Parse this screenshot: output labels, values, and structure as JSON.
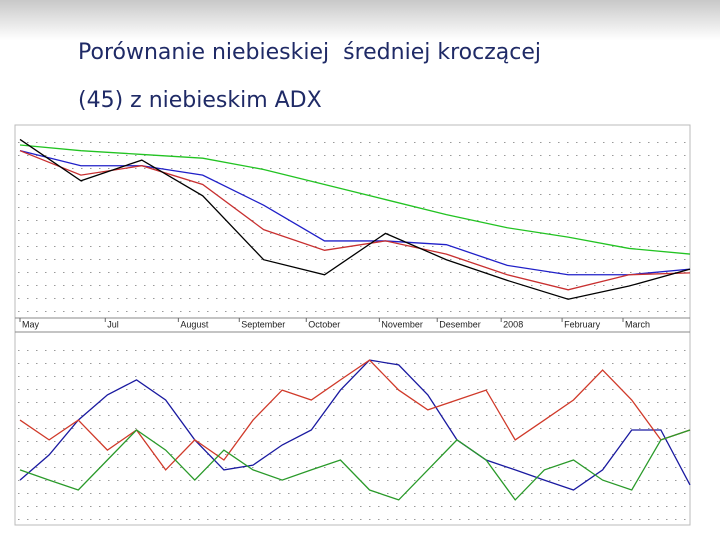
{
  "title": [
    "Porównanie niebieskiej  średniej kroczącej",
    "(45) z niebieskim ADX"
  ],
  "chart_data": [
    {
      "type": "line",
      "xlim": [
        0,
        11
      ],
      "ylim": [
        0,
        100
      ],
      "grid": true,
      "x": [
        0,
        1,
        2,
        3,
        4,
        5,
        6,
        7,
        8,
        9,
        10,
        11
      ],
      "xticks": [
        {
          "value": 0,
          "label": "May"
        },
        {
          "value": 1.4,
          "label": "Jul"
        },
        {
          "value": 2.6,
          "label": "August"
        },
        {
          "value": 3.6,
          "label": "September"
        },
        {
          "value": 4.7,
          "label": "October"
        },
        {
          "value": 5.9,
          "label": "November"
        },
        {
          "value": 6.85,
          "label": "Desember"
        },
        {
          "value": 7.9,
          "label": "2008"
        },
        {
          "value": 8.9,
          "label": "February"
        },
        {
          "value": 9.9,
          "label": "March"
        }
      ],
      "series": [
        {
          "color": "#22c322",
          "values": [
            92,
            89,
            87,
            85,
            79,
            71,
            63,
            55,
            48,
            43,
            37,
            34
          ]
        },
        {
          "color": "#2020c8",
          "values": [
            89,
            81,
            81,
            76,
            60,
            41,
            41,
            39,
            28,
            23,
            23,
            26
          ]
        },
        {
          "color": "#c83030",
          "values": [
            89,
            76,
            81,
            71,
            47,
            36,
            41,
            34,
            23,
            15,
            23,
            24
          ]
        },
        {
          "color": "#000000",
          "values": [
            95,
            73,
            84,
            65,
            31,
            23,
            45,
            31,
            20,
            10,
            17,
            26
          ]
        }
      ]
    },
    {
      "type": "line",
      "xlim": [
        0,
        23
      ],
      "ylim": [
        0,
        60
      ],
      "grid": true,
      "x": [
        0,
        1,
        2,
        3,
        4,
        5,
        6,
        7,
        8,
        9,
        10,
        11,
        12,
        13,
        14,
        15,
        16,
        17,
        18,
        19,
        20,
        21,
        22,
        23
      ],
      "series": [
        {
          "color": "#1a1aa0",
          "values": [
            13.3,
            21.7,
            33.3,
            41.7,
            46.7,
            40,
            26.7,
            16.7,
            18.3,
            25,
            30,
            43.3,
            53.3,
            51.7,
            41.7,
            26.7,
            20,
            16.7,
            13.3,
            10,
            16.7,
            30,
            30,
            11.7
          ]
        },
        {
          "color": "#d03a2a",
          "values": [
            33.3,
            26.7,
            33.3,
            23.3,
            30,
            16.7,
            26.7,
            20,
            33.3,
            43.3,
            40,
            46.7,
            53.3,
            43.3,
            36.7,
            40,
            43.3,
            26.7,
            33.3,
            40,
            50,
            40,
            26.7,
            30
          ]
        },
        {
          "color": "#2a9a2a",
          "values": [
            16.7,
            13.3,
            10,
            20,
            30,
            23.3,
            13.3,
            23.3,
            16.7,
            13.3,
            16.7,
            20,
            10,
            6.7,
            16.7,
            26.7,
            20,
            6.7,
            16.7,
            20,
            13.3,
            10,
            26.7,
            30
          ]
        }
      ]
    }
  ]
}
